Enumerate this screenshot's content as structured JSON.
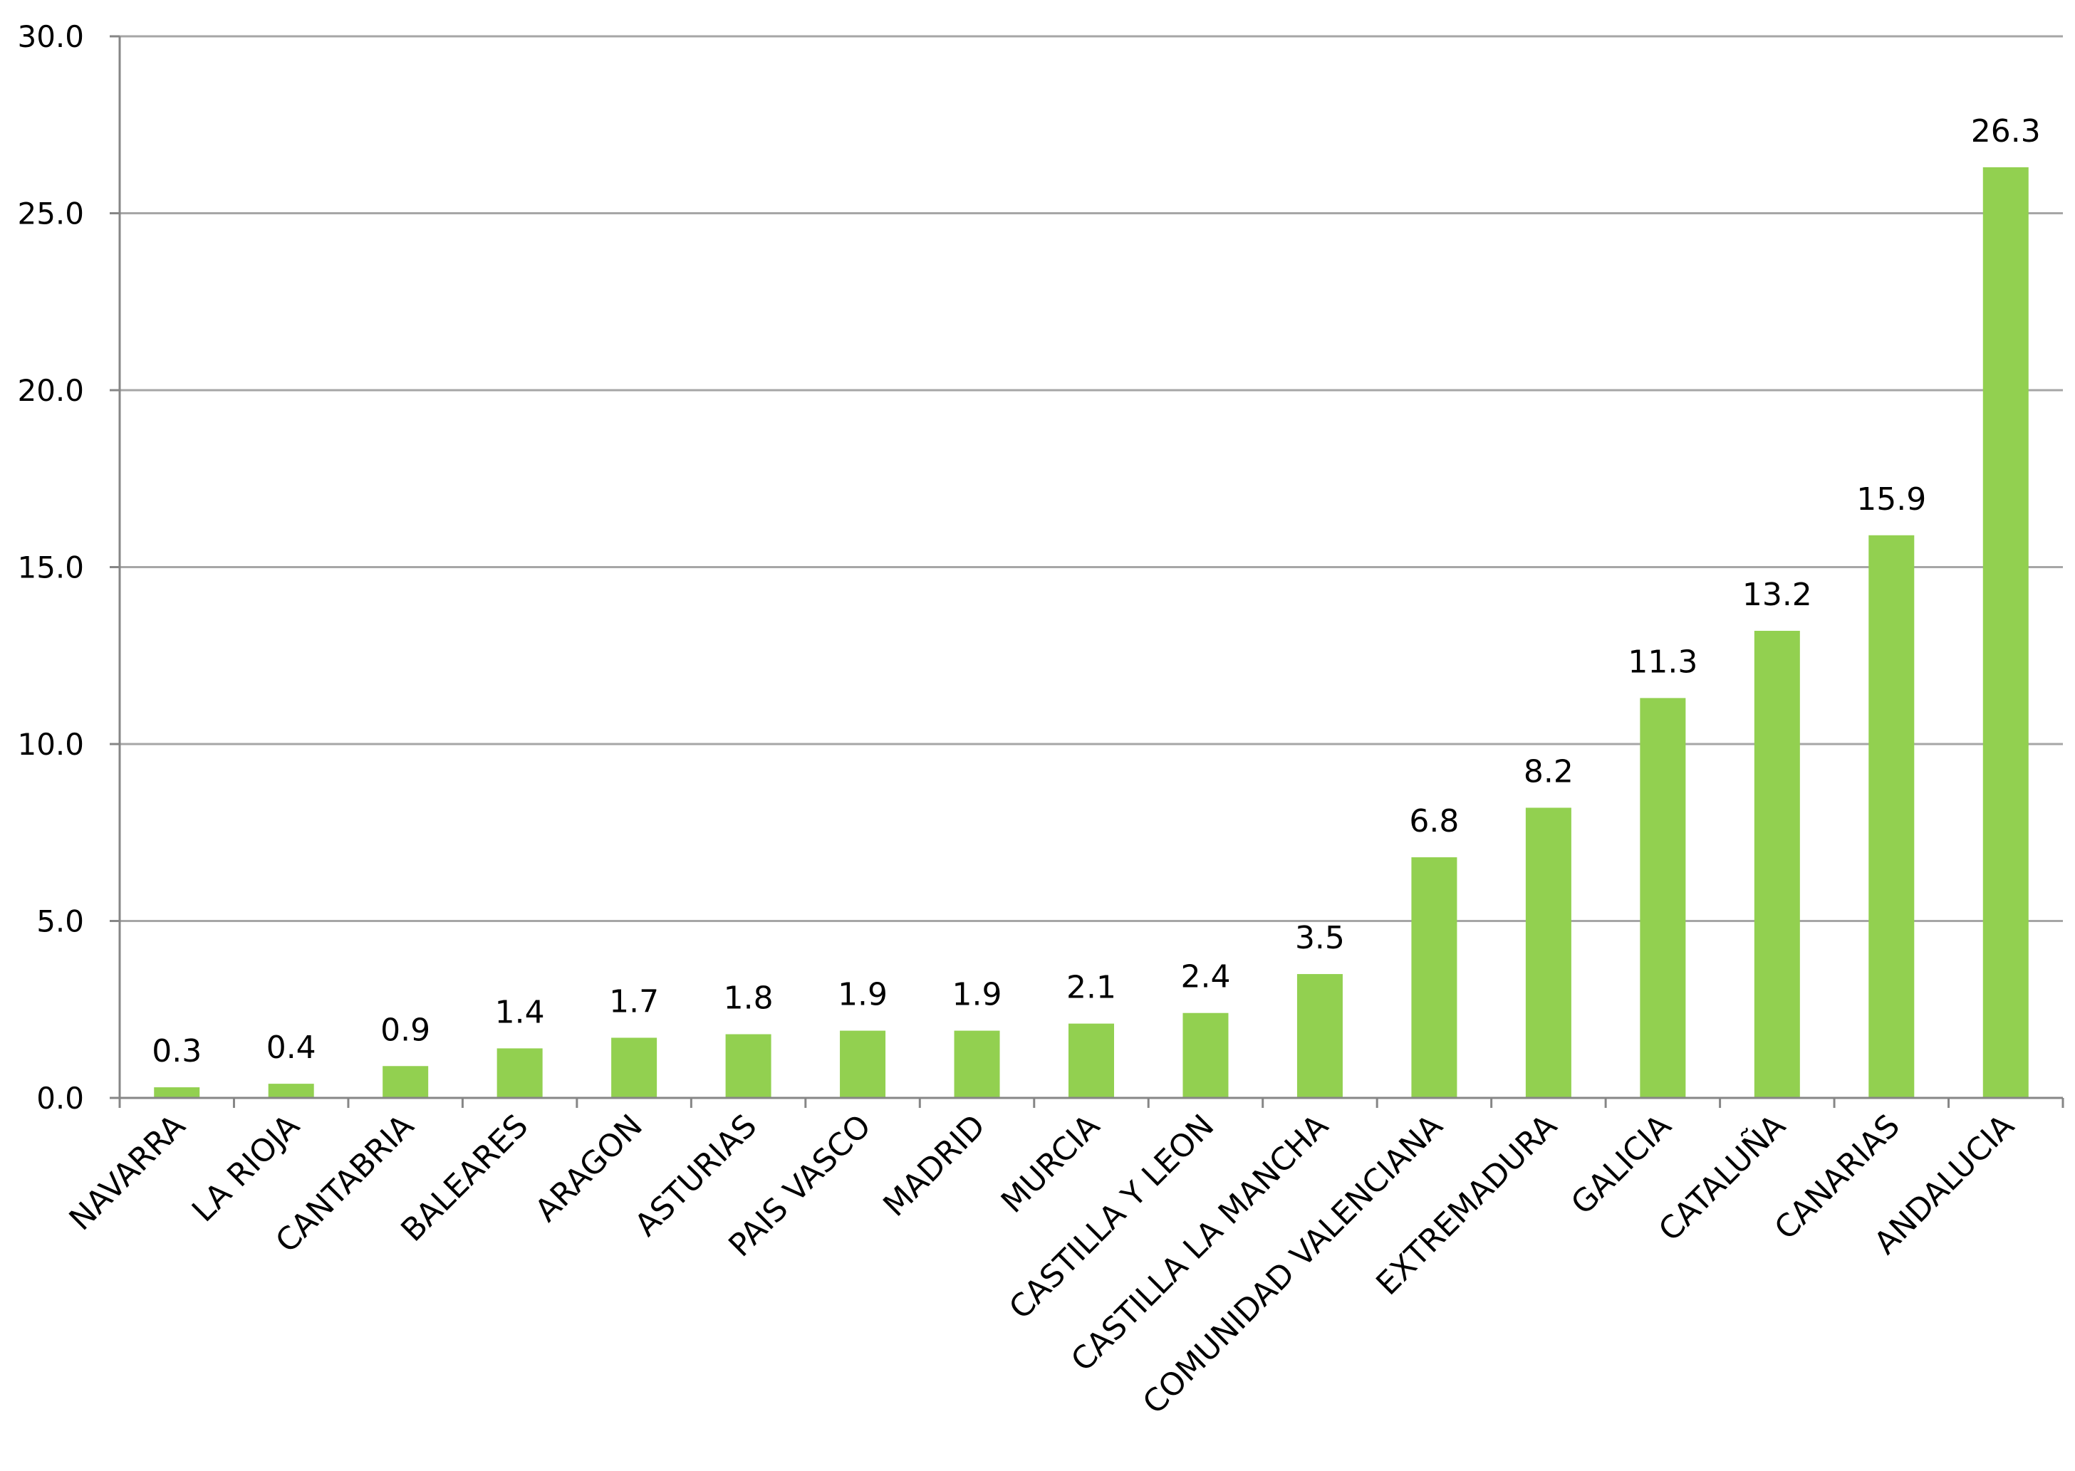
{
  "chart_data": {
    "type": "bar",
    "categories": [
      "NAVARRA",
      "LA RIOJA",
      "CANTABRIA",
      "BALEARES",
      "ARAGON",
      "ASTURIAS",
      "PAIS VASCO",
      "MADRID",
      "MURCIA",
      "CASTILLA Y LEON",
      "CASTILLA LA MANCHA",
      "COMUNIDAD VALENCIANA",
      "EXTREMADURA",
      "GALICIA",
      "CATALUÑA",
      "CANARIAS",
      "ANDALUCIA"
    ],
    "values": [
      0.3,
      0.4,
      0.9,
      1.4,
      1.7,
      1.8,
      1.9,
      1.9,
      2.1,
      2.4,
      3.5,
      6.8,
      8.2,
      11.3,
      13.2,
      15.9,
      26.3
    ],
    "value_labels": [
      "0.3",
      "0.4",
      "0.9",
      "1.4",
      "1.7",
      "1.8",
      "1.9",
      "1.9",
      "2.1",
      "2.4",
      "3.5",
      "6.8",
      "8.2",
      "11.3",
      "13.2",
      "15.9",
      "26.3"
    ],
    "yticks": [
      "0.0",
      "5.0",
      "10.0",
      "15.0",
      "20.0",
      "25.0",
      "30.0"
    ],
    "ytick_values": [
      0,
      5,
      10,
      15,
      20,
      25,
      30
    ],
    "ylim": [
      0,
      30
    ],
    "title": "",
    "xlabel": "",
    "ylabel": "",
    "grid": true,
    "legend": "none",
    "bar_color": "#92d050",
    "grid_color": "#a6a6a6"
  }
}
